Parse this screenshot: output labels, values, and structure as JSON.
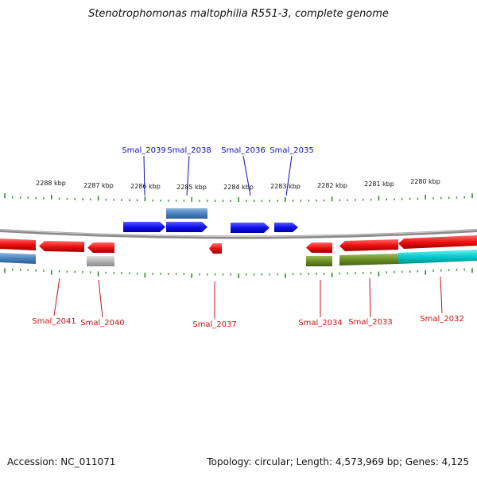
{
  "title": "Stenotrophomonas maltophilia R551-3, complete genome",
  "footer": {
    "accession": "Accession: NC_011071",
    "summary": "Topology: circular; Length: 4,573,969 bp; Genes: 4,125"
  },
  "colors": {
    "forward_gene": "#1010ee",
    "forward_gene_alt": "#4a84be",
    "reverse_gene": "#ee1010",
    "grey_gene": "#b4b4b4",
    "olive_gene": "#6b8e23",
    "cyan_gene": "#00cccc",
    "backbone": "#8a8a8a",
    "ticks": "#2e8b2e",
    "top_labels": "#1010c0",
    "bottom_labels": "#cc1010"
  },
  "scale_labels": [
    "2288 kbp",
    "2287 kbp",
    "2286 kbp",
    "2285 kbp",
    "2284 kbp",
    "2283 kbp",
    "2282 kbp",
    "2281 kbp",
    "2280 kbp"
  ],
  "genes_top": [
    "Smal_2039",
    "Smal_2038",
    "Smal_2036",
    "Smal_2035"
  ],
  "genes_bottom": [
    "Smal_2041",
    "Smal_2040",
    "Smal_2037",
    "Smal_2034",
    "Smal_2033",
    "Smal_2032"
  ]
}
